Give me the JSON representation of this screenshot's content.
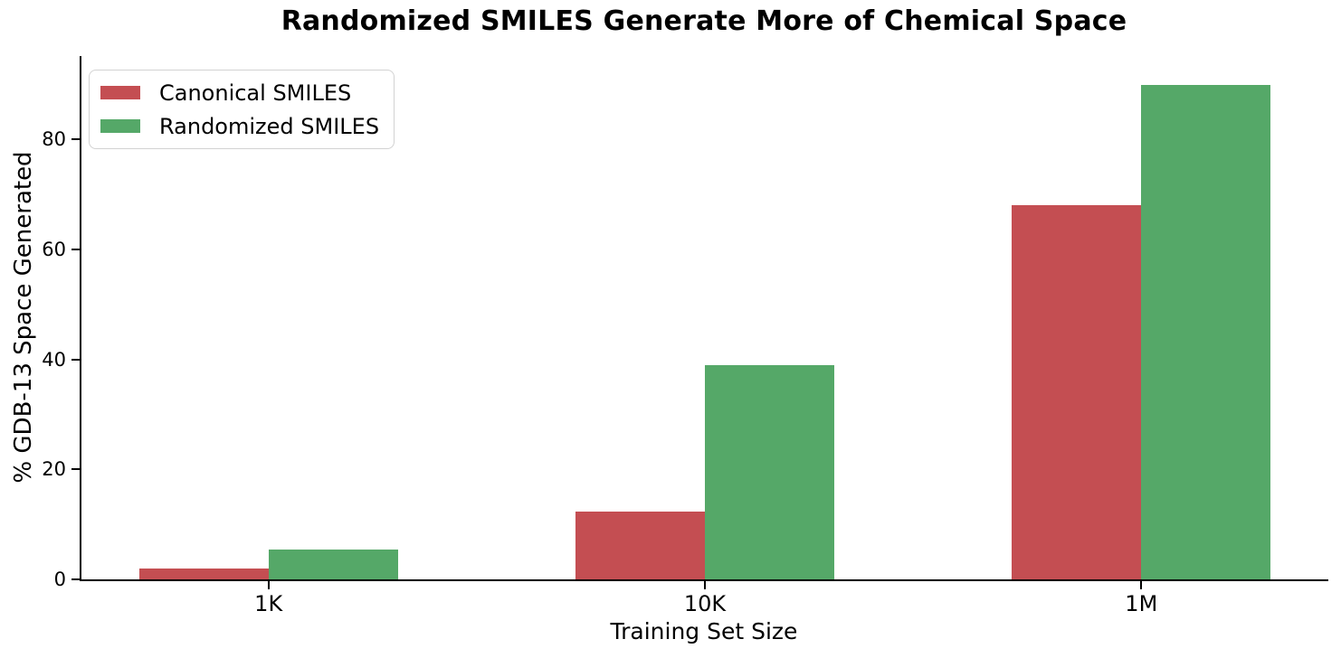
{
  "chart_data": {
    "type": "bar",
    "title": "Randomized SMILES Generate More of Chemical Space",
    "xlabel": "Training Set Size",
    "ylabel": "% GDB-13 Space Generated",
    "categories": [
      "1K",
      "10K",
      "1M"
    ],
    "series": [
      {
        "name": "Canonical SMILES",
        "color": "#c44e52",
        "values": [
          2,
          12.3,
          68
        ]
      },
      {
        "name": "Randomized SMILES",
        "color": "#55a868",
        "values": [
          5.5,
          39,
          90
        ]
      }
    ],
    "yticks": [
      0,
      20,
      40,
      60,
      80
    ],
    "ylim": [
      0,
      95.2
    ],
    "grid": false,
    "legend_position": "upper-left",
    "axis_color": "#000000",
    "background_color": "#ffffff"
  }
}
